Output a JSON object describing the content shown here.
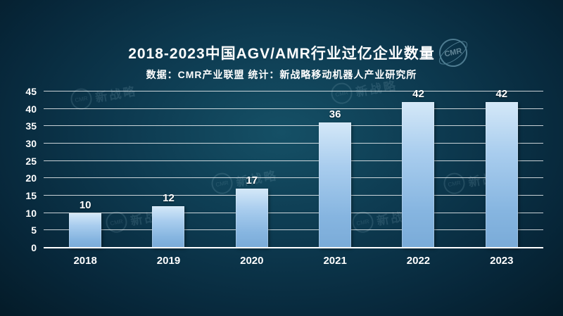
{
  "title": "2018-2023中国AGV/AMR行业过亿企业数量",
  "subtitle": "数据：CMR产业联盟  统计：新战略移动机器人产业研究所",
  "logo": {
    "text": "CMR"
  },
  "watermark": {
    "text": "新战略",
    "circle_text": "CMR"
  },
  "chart_data": {
    "type": "bar",
    "title": "2018-2023中国AGV/AMR行业过亿企业数量",
    "subtitle": "数据：CMR产业联盟  统计：新战略移动机器人产业研究所",
    "categories": [
      "2018",
      "2019",
      "2020",
      "2021",
      "2022",
      "2023"
    ],
    "values": [
      10,
      12,
      17,
      36,
      42,
      42
    ],
    "xlabel": "",
    "ylabel": "",
    "ylim": [
      0,
      45
    ],
    "ytick_step": 5,
    "grid": true,
    "legend": "none",
    "bar_color_top": "#d4e8f8",
    "bar_color_bottom": "#7aabd8",
    "background_color": "#0d3a50",
    "text_color": "#ffffff"
  }
}
